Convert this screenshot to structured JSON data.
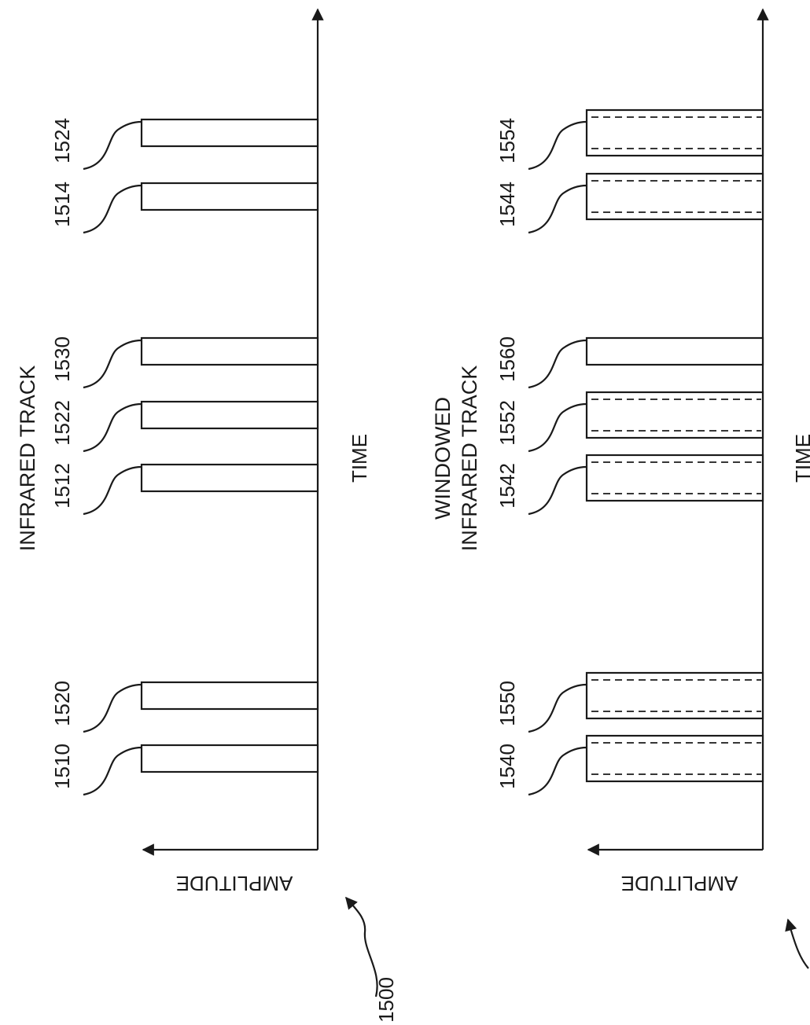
{
  "figure_ref": "1500",
  "panels": [
    {
      "id": "top",
      "title_lines": [
        "INFRARED TRACK"
      ],
      "x_label": "TIME",
      "y_label": "AMPLITUDE",
      "pulses": [
        {
          "ref": "1510",
          "dashed": false
        },
        {
          "ref": "1520",
          "dashed": false
        },
        {
          "ref": "1512",
          "dashed": false
        },
        {
          "ref": "1522",
          "dashed": false
        },
        {
          "ref": "1530",
          "dashed": false
        },
        {
          "ref": "1514",
          "dashed": false
        },
        {
          "ref": "1524",
          "dashed": false
        }
      ]
    },
    {
      "id": "bottom",
      "title_lines": [
        "WINDOWED",
        "INFRARED TRACK"
      ],
      "x_label": "TIME",
      "y_label": "AMPLITUDE",
      "pulses": [
        {
          "ref": "1540",
          "dashed": true
        },
        {
          "ref": "1550",
          "dashed": true
        },
        {
          "ref": "1542",
          "dashed": true
        },
        {
          "ref": "1552",
          "dashed": true
        },
        {
          "ref": "1560",
          "dashed": false
        },
        {
          "ref": "1544",
          "dashed": true
        },
        {
          "ref": "1554",
          "dashed": true
        }
      ]
    }
  ]
}
